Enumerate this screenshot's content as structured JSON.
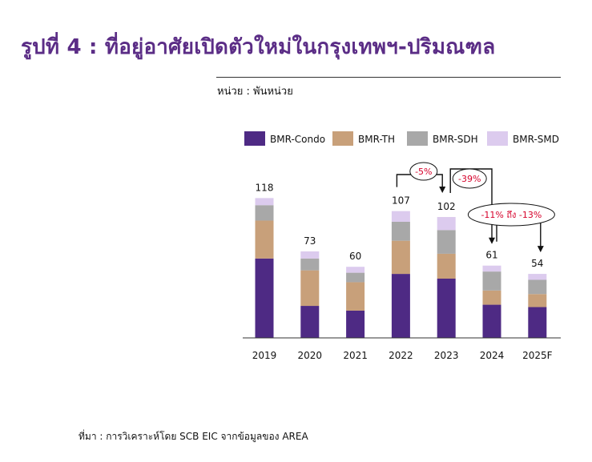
{
  "header": {
    "title": "รูปที่ 4 : ที่อยู่อาศัยเปิดตัวใหม่ในกรุงเทพฯ-ปริมณฑล",
    "unit": "หน่วย : พันหน่วย"
  },
  "footer": {
    "source": "ที่มา : การวิเคราะห์โดย SCB EIC จากข้อมูลของ AREA"
  },
  "colors": {
    "title": "#5b2d86",
    "condo": "#4e2a84",
    "th": "#c8a07a",
    "sdh": "#a8a8a8",
    "smd": "#dccbee",
    "annotation": "#d6002a"
  },
  "chart_data": {
    "type": "bar",
    "stacked": true,
    "categories": [
      "2019",
      "2020",
      "2021",
      "2022",
      "2023",
      "2024",
      "2025F"
    ],
    "series": [
      {
        "name": "BMR-Condo",
        "values": [
          67,
          27,
          23,
          54,
          50,
          28,
          26
        ]
      },
      {
        "name": "BMR-TH",
        "values": [
          32,
          30,
          24,
          28,
          21,
          12,
          11
        ]
      },
      {
        "name": "BMR-SDH",
        "values": [
          13,
          10,
          8,
          16,
          20,
          16,
          12
        ]
      },
      {
        "name": "BMR-SMD",
        "values": [
          6,
          6,
          5,
          9,
          11,
          5,
          5
        ]
      }
    ],
    "totals": [
      "118",
      "73",
      "60",
      "107",
      "102",
      "61",
      "54"
    ],
    "ylim": [
      0,
      130
    ],
    "legend_position": "top",
    "grid": false,
    "annotations": [
      {
        "text": "-5%",
        "from": "2022",
        "to": "2023"
      },
      {
        "text": "-39%",
        "from": "2023",
        "to": "2024"
      },
      {
        "text": "-11% ถึง -13%",
        "from": "2024",
        "to": "2025F"
      }
    ]
  }
}
